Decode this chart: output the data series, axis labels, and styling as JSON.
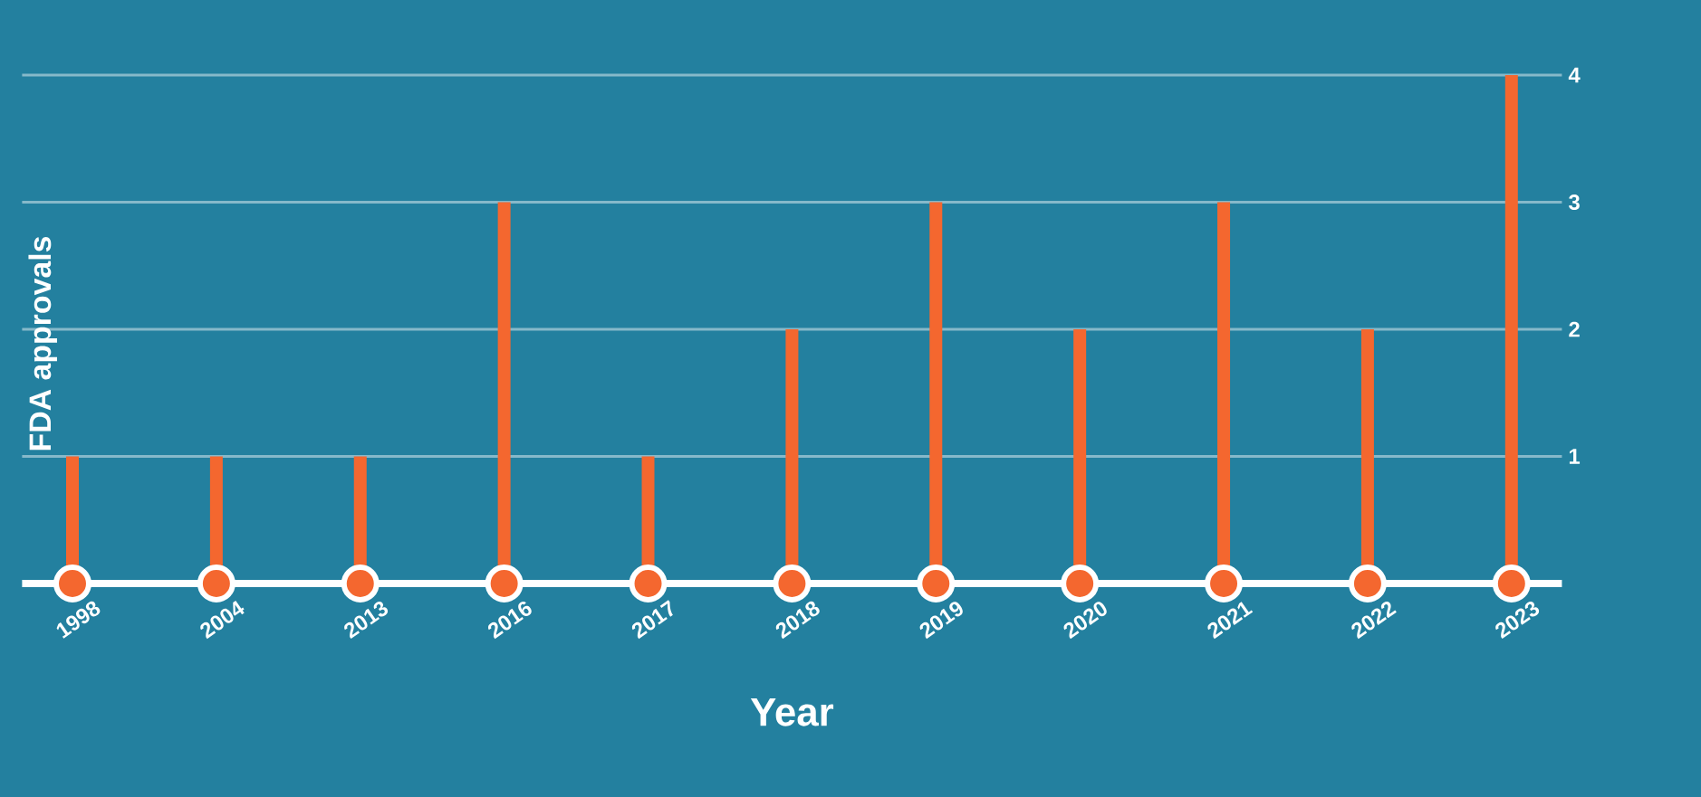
{
  "chart_data": {
    "type": "bar",
    "xlabel": "Year",
    "ylabel": "FDA approvals",
    "categories": [
      "1998",
      "2004",
      "2013",
      "2016",
      "2017",
      "2018",
      "2019",
      "2020",
      "2021",
      "2022",
      "2023"
    ],
    "values": [
      1,
      1,
      1,
      3,
      1,
      2,
      3,
      2,
      3,
      2,
      4
    ],
    "color": "#f4672f",
    "ylim": [
      0,
      4
    ],
    "yticks": [
      1,
      2,
      3,
      4
    ],
    "grid": "y"
  }
}
